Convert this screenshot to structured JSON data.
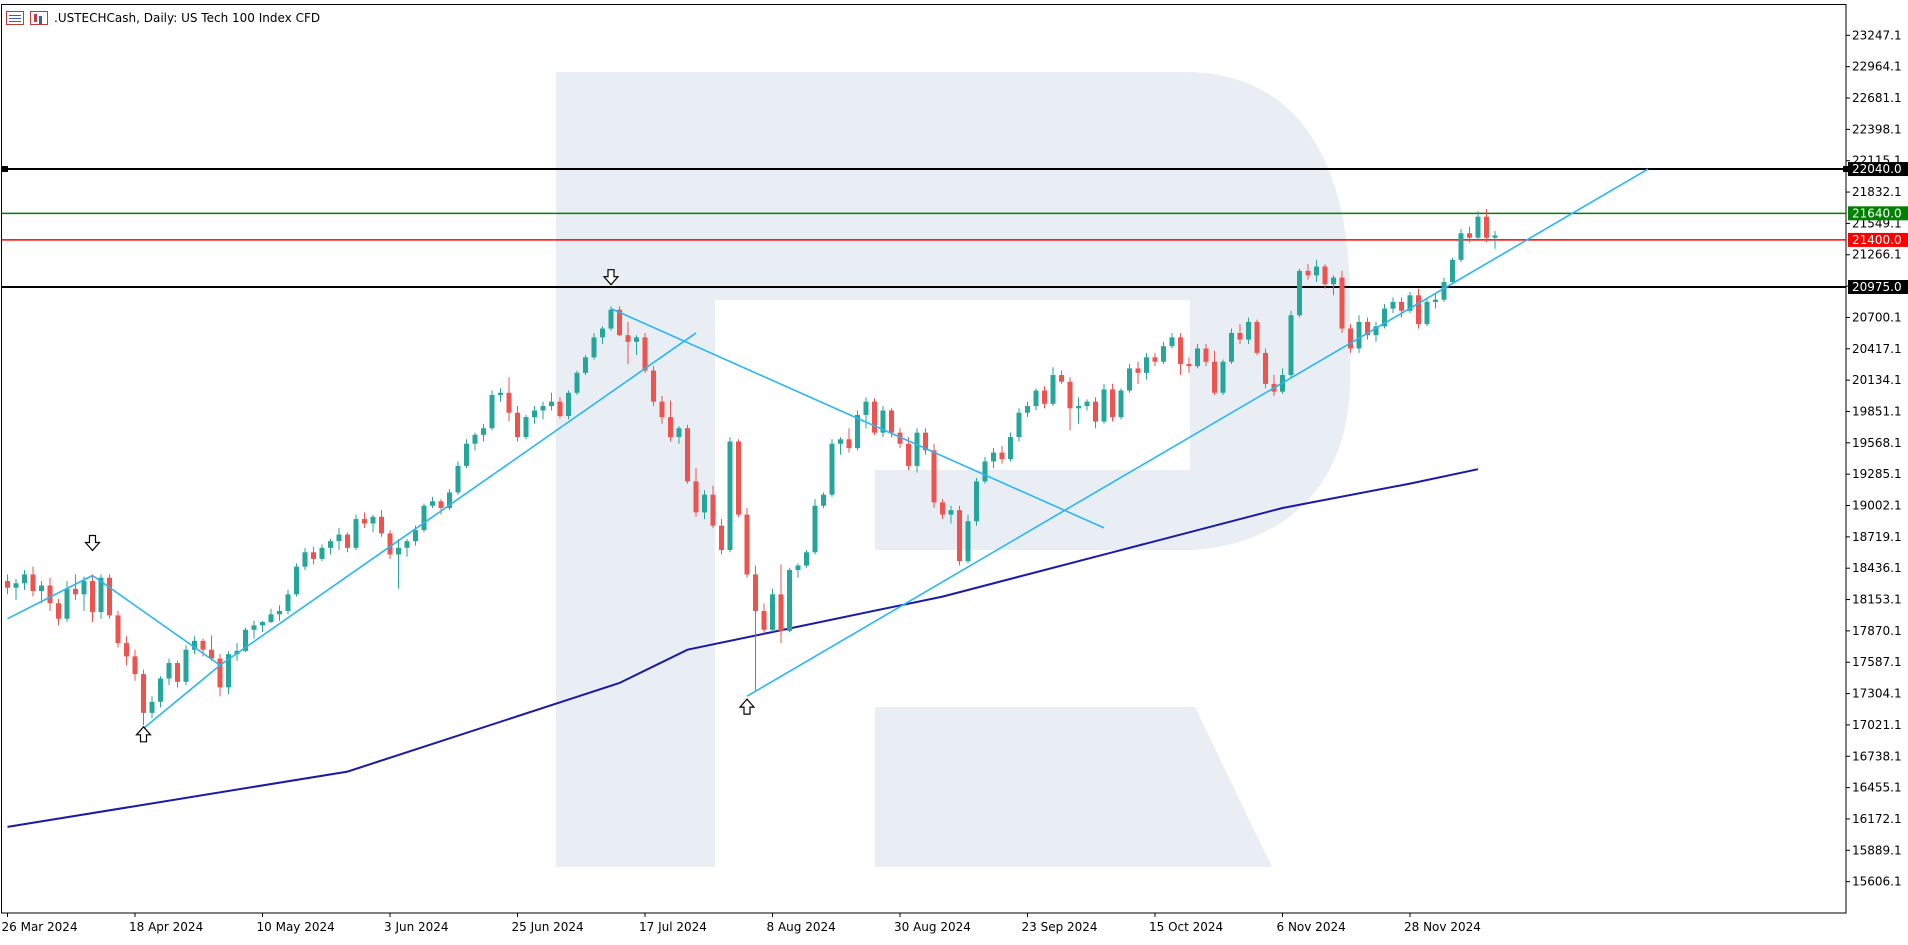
{
  "header": {
    "title": ".USTECHCash, Daily:  US Tech 100 Index CFD",
    "icons": [
      "list-icon",
      "bars-icon"
    ]
  },
  "colors": {
    "bull": "#26a69a",
    "bear": "#ef5350",
    "trendline": "#29b6f6",
    "ma": "#1a1aa6",
    "black_level": "#000000",
    "green_level": "#008000",
    "red_level": "#ff0000",
    "watermark": "#e9eef5"
  },
  "chart_data": {
    "type": "candlestick",
    "title": ".USTECHCash, Daily:  US Tech 100 Index CFD",
    "ylim": [
      15323,
      23530
    ],
    "y_ticks": [
      15606.1,
      15889.1,
      16172.1,
      16455.1,
      16738.1,
      17021.1,
      17304.1,
      17587.1,
      17870.1,
      18153.1,
      18436.1,
      18719.1,
      19002.1,
      19285.1,
      19568.1,
      19851.1,
      20134.1,
      20417.1,
      20700.1,
      20983.1,
      21266.1,
      21549.1,
      21832.1,
      22115.1,
      22398.1,
      22681.1,
      22964.1,
      23247.1
    ],
    "x_labels": [
      {
        "index": 0,
        "label": "26 Mar 2024"
      },
      {
        "index": 15,
        "label": "18 Apr 2024"
      },
      {
        "index": 30,
        "label": "10 May 2024"
      },
      {
        "index": 45,
        "label": "3 Jun 2024"
      },
      {
        "index": 60,
        "label": "25 Jun 2024"
      },
      {
        "index": 75,
        "label": "17 Jul 2024"
      },
      {
        "index": 90,
        "label": "8 Aug 2024"
      },
      {
        "index": 105,
        "label": "30 Aug 2024"
      },
      {
        "index": 120,
        "label": "23 Sep 2024"
      },
      {
        "index": 135,
        "label": "15 Oct 2024"
      },
      {
        "index": 150,
        "label": "6 Nov 2024"
      },
      {
        "index": 165,
        "label": "28 Nov 2024"
      }
    ],
    "levels": [
      {
        "value": 22040.0,
        "label": "22040.0",
        "color": "#000000"
      },
      {
        "value": 21640.0,
        "label": "21640.0",
        "color": "#008000"
      },
      {
        "value": 21400.0,
        "label": "21400.0",
        "color": "#ff0000"
      },
      {
        "value": 20975.0,
        "label": "20975.0",
        "color": "#000000"
      }
    ],
    "candles_ohlc": [
      [
        18320,
        18380,
        18200,
        18260
      ],
      [
        18260,
        18340,
        18150,
        18300
      ],
      [
        18300,
        18420,
        18240,
        18380
      ],
      [
        18380,
        18450,
        18180,
        18230
      ],
      [
        18230,
        18320,
        18120,
        18280
      ],
      [
        18280,
        18350,
        18050,
        18120
      ],
      [
        18120,
        18160,
        17920,
        17980
      ],
      [
        17980,
        18320,
        17950,
        18250
      ],
      [
        18250,
        18380,
        18150,
        18200
      ],
      [
        18200,
        18360,
        18050,
        18320
      ],
      [
        18320,
        18380,
        17950,
        18040
      ],
      [
        18040,
        18380,
        17980,
        18350
      ],
      [
        18350,
        18380,
        17980,
        18010
      ],
      [
        18010,
        18050,
        17720,
        17760
      ],
      [
        17760,
        17820,
        17560,
        17640
      ],
      [
        17640,
        17700,
        17420,
        17480
      ],
      [
        17480,
        17520,
        17020,
        17130
      ],
      [
        17130,
        17280,
        17080,
        17230
      ],
      [
        17230,
        17460,
        17180,
        17440
      ],
      [
        17440,
        17620,
        17380,
        17580
      ],
      [
        17580,
        17600,
        17360,
        17410
      ],
      [
        17410,
        17740,
        17380,
        17700
      ],
      [
        17700,
        17820,
        17660,
        17780
      ],
      [
        17780,
        17800,
        17640,
        17700
      ],
      [
        17700,
        17830,
        17600,
        17620
      ],
      [
        17620,
        17660,
        17280,
        17360
      ],
      [
        17360,
        17690,
        17300,
        17660
      ],
      [
        17660,
        17760,
        17600,
        17690
      ],
      [
        17690,
        17900,
        17680,
        17880
      ],
      [
        17880,
        17960,
        17800,
        17920
      ],
      [
        17920,
        17960,
        17860,
        17950
      ],
      [
        17950,
        18070,
        17940,
        18020
      ],
      [
        18020,
        18100,
        17960,
        18050
      ],
      [
        18050,
        18240,
        18020,
        18200
      ],
      [
        18200,
        18480,
        18180,
        18450
      ],
      [
        18450,
        18620,
        18420,
        18580
      ],
      [
        18580,
        18630,
        18470,
        18520
      ],
      [
        18520,
        18650,
        18500,
        18620
      ],
      [
        18620,
        18700,
        18560,
        18680
      ],
      [
        18680,
        18800,
        18600,
        18740
      ],
      [
        18740,
        18760,
        18580,
        18620
      ],
      [
        18620,
        18920,
        18600,
        18880
      ],
      [
        18880,
        18940,
        18800,
        18840
      ],
      [
        18840,
        18920,
        18760,
        18900
      ],
      [
        18900,
        18960,
        18720,
        18750
      ],
      [
        18750,
        18780,
        18520,
        18560
      ],
      [
        18560,
        18700,
        18250,
        18620
      ],
      [
        18620,
        18700,
        18540,
        18680
      ],
      [
        18680,
        18820,
        18640,
        18780
      ],
      [
        18780,
        19020,
        18760,
        19000
      ],
      [
        19000,
        19080,
        18980,
        19040
      ],
      [
        19040,
        19060,
        18920,
        18980
      ],
      [
        18980,
        19150,
        18960,
        19120
      ],
      [
        19120,
        19400,
        19100,
        19360
      ],
      [
        19360,
        19600,
        19340,
        19560
      ],
      [
        19560,
        19660,
        19500,
        19640
      ],
      [
        19640,
        19740,
        19580,
        19700
      ],
      [
        19700,
        20040,
        19680,
        20000
      ],
      [
        20000,
        20060,
        19940,
        20020
      ],
      [
        20020,
        20160,
        19760,
        19840
      ],
      [
        19840,
        19900,
        19580,
        19620
      ],
      [
        19620,
        19820,
        19600,
        19800
      ],
      [
        19800,
        19900,
        19740,
        19860
      ],
      [
        19860,
        19940,
        19780,
        19900
      ],
      [
        19900,
        20020,
        19860,
        19940
      ],
      [
        19940,
        19980,
        19790,
        19810
      ],
      [
        19810,
        20040,
        19780,
        20020
      ],
      [
        20020,
        20220,
        20000,
        20200
      ],
      [
        20200,
        20360,
        20180,
        20340
      ],
      [
        20340,
        20560,
        20320,
        20520
      ],
      [
        20520,
        20620,
        20460,
        20600
      ],
      [
        20600,
        20800,
        20580,
        20770
      ],
      [
        20770,
        20800,
        20530,
        20540
      ],
      [
        20540,
        20660,
        20280,
        20480
      ],
      [
        20480,
        20540,
        20360,
        20520
      ],
      [
        20520,
        20560,
        20200,
        20220
      ],
      [
        20220,
        20260,
        19900,
        19940
      ],
      [
        19940,
        19990,
        19740,
        19800
      ],
      [
        19800,
        19950,
        19580,
        19620
      ],
      [
        19620,
        19720,
        19560,
        19700
      ],
      [
        19700,
        19730,
        19200,
        19220
      ],
      [
        19220,
        19340,
        18900,
        18940
      ],
      [
        18940,
        19140,
        18880,
        19100
      ],
      [
        19100,
        19180,
        18800,
        18820
      ],
      [
        18820,
        18880,
        18560,
        18600
      ],
      [
        18600,
        19620,
        18580,
        19580
      ],
      [
        19580,
        19600,
        18900,
        18920
      ],
      [
        18920,
        18980,
        18350,
        18380
      ],
      [
        18380,
        18460,
        17330,
        18050
      ],
      [
        18050,
        18120,
        17840,
        17880
      ],
      [
        17880,
        18250,
        17860,
        18200
      ],
      [
        18200,
        18470,
        17760,
        17870
      ],
      [
        17870,
        18440,
        17860,
        18420
      ],
      [
        18420,
        18480,
        18350,
        18460
      ],
      [
        18460,
        18600,
        18440,
        18580
      ],
      [
        18580,
        19060,
        18560,
        19000
      ],
      [
        19000,
        19120,
        18980,
        19100
      ],
      [
        19100,
        19600,
        19080,
        19560
      ],
      [
        19560,
        19620,
        19460,
        19600
      ],
      [
        19600,
        19700,
        19480,
        19520
      ],
      [
        19520,
        19860,
        19500,
        19820
      ],
      [
        19820,
        19980,
        19700,
        19940
      ],
      [
        19940,
        19970,
        19640,
        19660
      ],
      [
        19660,
        19900,
        19620,
        19860
      ],
      [
        19860,
        19880,
        19620,
        19660
      ],
      [
        19660,
        19700,
        19520,
        19560
      ],
      [
        19560,
        19620,
        19320,
        19360
      ],
      [
        19360,
        19700,
        19300,
        19660
      ],
      [
        19660,
        19700,
        19460,
        19500
      ],
      [
        19500,
        19560,
        18980,
        19030
      ],
      [
        19030,
        19060,
        18880,
        18920
      ],
      [
        18920,
        19000,
        18840,
        18960
      ],
      [
        18960,
        19000,
        18460,
        18500
      ],
      [
        18500,
        18920,
        18480,
        18860
      ],
      [
        18860,
        19250,
        18820,
        19220
      ],
      [
        19220,
        19440,
        19200,
        19400
      ],
      [
        19400,
        19520,
        19340,
        19480
      ],
      [
        19480,
        19540,
        19380,
        19420
      ],
      [
        19420,
        19660,
        19400,
        19620
      ],
      [
        19620,
        19880,
        19580,
        19840
      ],
      [
        19840,
        19940,
        19800,
        19900
      ],
      [
        19900,
        20060,
        19860,
        20040
      ],
      [
        20040,
        20080,
        19880,
        19920
      ],
      [
        19920,
        20250,
        19900,
        20180
      ],
      [
        20180,
        20220,
        20100,
        20120
      ],
      [
        20120,
        20160,
        19680,
        19880
      ],
      [
        19880,
        19980,
        19740,
        19900
      ],
      [
        19900,
        19960,
        19860,
        19940
      ],
      [
        19940,
        19980,
        19700,
        19760
      ],
      [
        19760,
        20100,
        19740,
        20050
      ],
      [
        20050,
        20100,
        19760,
        19800
      ],
      [
        19800,
        20060,
        19780,
        20040
      ],
      [
        20040,
        20280,
        20020,
        20240
      ],
      [
        20240,
        20300,
        20100,
        20200
      ],
      [
        20200,
        20380,
        20140,
        20340
      ],
      [
        20340,
        20380,
        20260,
        20300
      ],
      [
        20300,
        20480,
        20280,
        20440
      ],
      [
        20440,
        20560,
        20420,
        20520
      ],
      [
        20520,
        20560,
        20180,
        20280
      ],
      [
        20280,
        20340,
        20200,
        20260
      ],
      [
        20260,
        20460,
        20240,
        20420
      ],
      [
        20420,
        20460,
        20260,
        20300
      ],
      [
        20300,
        20400,
        20000,
        20020
      ],
      [
        20020,
        20320,
        20000,
        20300
      ],
      [
        20300,
        20600,
        20280,
        20560
      ],
      [
        20560,
        20640,
        20460,
        20500
      ],
      [
        20500,
        20700,
        20460,
        20660
      ],
      [
        20660,
        20680,
        20360,
        20380
      ],
      [
        20380,
        20420,
        20060,
        20100
      ],
      [
        20100,
        20180,
        19990,
        20030
      ],
      [
        20030,
        20240,
        20010,
        20180
      ],
      [
        20180,
        20760,
        20160,
        20720
      ],
      [
        20720,
        21140,
        20700,
        21120
      ],
      [
        21120,
        21180,
        21040,
        21080
      ],
      [
        21080,
        21220,
        21020,
        21160
      ],
      [
        21160,
        21180,
        20960,
        21000
      ],
      [
        21000,
        21080,
        20900,
        21060
      ],
      [
        21060,
        21120,
        20560,
        20600
      ],
      [
        20600,
        20640,
        20380,
        20420
      ],
      [
        20420,
        20720,
        20380,
        20660
      ],
      [
        20660,
        20700,
        20500,
        20540
      ],
      [
        20540,
        20660,
        20480,
        20620
      ],
      [
        20620,
        20820,
        20600,
        20780
      ],
      [
        20780,
        20880,
        20740,
        20840
      ],
      [
        20840,
        20880,
        20700,
        20760
      ],
      [
        20760,
        20930,
        20740,
        20900
      ],
      [
        20900,
        20960,
        20600,
        20640
      ],
      [
        20640,
        20880,
        20620,
        20840
      ],
      [
        20840,
        20920,
        20780,
        20860
      ],
      [
        20860,
        21060,
        20840,
        21020
      ],
      [
        21020,
        21240,
        21000,
        21220
      ],
      [
        21220,
        21500,
        21200,
        21460
      ],
      [
        21460,
        21520,
        21380,
        21420
      ],
      [
        21420,
        21660,
        21400,
        21610
      ],
      [
        21610,
        21680,
        21380,
        21420
      ],
      [
        21420,
        21480,
        21320,
        21440
      ]
    ],
    "indicator_ma": [
      [
        0,
        16100
      ],
      [
        40,
        16600
      ],
      [
        72,
        17400
      ],
      [
        80,
        17700
      ],
      [
        90,
        17860
      ],
      [
        110,
        18180
      ],
      [
        130,
        18580
      ],
      [
        150,
        18980
      ],
      [
        165,
        19200
      ],
      [
        173,
        19330
      ]
    ],
    "trendlines": [
      [
        [
          0,
          17980
        ],
        [
          10,
          18370
        ]
      ],
      [
        [
          10,
          18370
        ],
        [
          25,
          17560
        ]
      ],
      [
        [
          16,
          16990
        ],
        [
          25,
          17560
        ]
      ],
      [
        [
          25,
          17560
        ],
        [
          81,
          20560
        ]
      ],
      [
        [
          71,
          20780
        ],
        [
          129,
          18800
        ]
      ],
      [
        [
          87,
          17280
        ],
        [
          193,
          22040
        ]
      ]
    ],
    "arrows": [
      {
        "index": 10,
        "direction": "down",
        "value": 18650
      },
      {
        "index": 16,
        "direction": "up",
        "value": 16950
      },
      {
        "index": 71,
        "direction": "down",
        "value": 21050
      },
      {
        "index": 87,
        "direction": "up",
        "value": 17200
      }
    ]
  }
}
